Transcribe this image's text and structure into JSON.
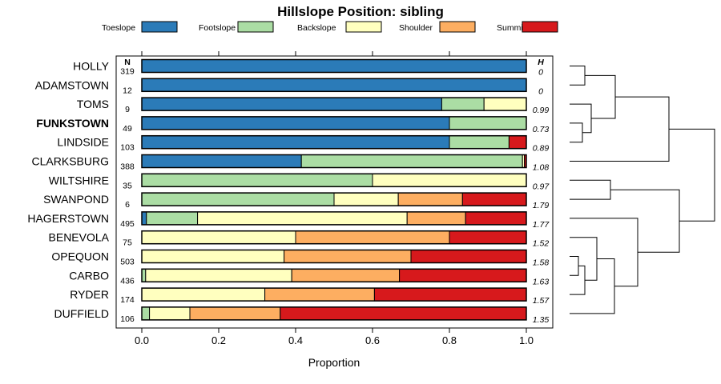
{
  "chart_data": {
    "type": "bar",
    "stacked": true,
    "orientation": "horizontal",
    "title": "Hillslope Position: sibling",
    "xlabel": "Proportion",
    "xlim": [
      0,
      1
    ],
    "xticks": [
      "0.0",
      "0.2",
      "0.4",
      "0.6",
      "0.8",
      "1.0"
    ],
    "n_header": "N",
    "h_header": "H",
    "highlight": "FUNKSTOWN",
    "legend": [
      {
        "name": "Toeslope",
        "color": "#2b7bb8"
      },
      {
        "name": "Footslope",
        "color": "#abdda4"
      },
      {
        "name": "Backslope",
        "color": "#ffffbf"
      },
      {
        "name": "Shoulder",
        "color": "#fdae61"
      },
      {
        "name": "Summit",
        "color": "#d7191c"
      }
    ],
    "rows": [
      {
        "name": "HOLLY",
        "n": "319",
        "h": "0",
        "values": [
          1.0,
          0,
          0,
          0,
          0
        ]
      },
      {
        "name": "ADAMSTOWN",
        "n": "12",
        "h": "0",
        "values": [
          1.0,
          0,
          0,
          0,
          0
        ]
      },
      {
        "name": "TOMS",
        "n": "9",
        "h": "0.99",
        "values": [
          0.78,
          0.11,
          0.11,
          0,
          0
        ]
      },
      {
        "name": "FUNKSTOWN",
        "n": "49",
        "h": "0.73",
        "values": [
          0.8,
          0.2,
          0,
          0,
          0
        ]
      },
      {
        "name": "LINDSIDE",
        "n": "103",
        "h": "0.89",
        "values": [
          0.8,
          0.155,
          0,
          0,
          0.045
        ]
      },
      {
        "name": "CLARKSBURG",
        "n": "388",
        "h": "1.08",
        "values": [
          0.415,
          0.575,
          0.005,
          0,
          0.005
        ]
      },
      {
        "name": "WILTSHIRE",
        "n": "35",
        "h": "0.97",
        "values": [
          0,
          0.6,
          0.4,
          0,
          0
        ]
      },
      {
        "name": "SWANPOND",
        "n": "6",
        "h": "1.79",
        "values": [
          0,
          0.5,
          0.167,
          0.167,
          0.166
        ]
      },
      {
        "name": "HAGERSTOWN",
        "n": "495",
        "h": "1.77",
        "values": [
          0.012,
          0.133,
          0.545,
          0.152,
          0.158
        ]
      },
      {
        "name": "BENEVOLA",
        "n": "75",
        "h": "1.52",
        "values": [
          0,
          0,
          0.4,
          0.4,
          0.2
        ]
      },
      {
        "name": "OPEQUON",
        "n": "503",
        "h": "1.58",
        "values": [
          0,
          0,
          0.37,
          0.33,
          0.3
        ]
      },
      {
        "name": "CARBO",
        "n": "436",
        "h": "1.63",
        "values": [
          0,
          0.01,
          0.38,
          0.28,
          0.33
        ]
      },
      {
        "name": "RYDER",
        "n": "174",
        "h": "1.57",
        "values": [
          0,
          0,
          0.32,
          0.285,
          0.395
        ]
      },
      {
        "name": "DUFFIELD",
        "n": "106",
        "h": "1.35",
        "values": [
          0,
          0.02,
          0.105,
          0.235,
          0.64
        ]
      }
    ],
    "dendrogram": [
      {
        "children": [
          "HOLLY",
          "ADAMSTOWN"
        ]
      },
      {
        "children": [
          "FUNKSTOWN",
          "LINDSIDE"
        ]
      },
      {
        "children": [
          "TOMS",
          1
        ]
      },
      {
        "children": [
          0,
          2
        ]
      },
      {
        "children": [
          3,
          "CLARKSBURG"
        ]
      },
      {
        "children": [
          "WILTSHIRE",
          "SWANPOND"
        ]
      },
      {
        "children": [
          "OPEQUON",
          "CARBO"
        ]
      },
      {
        "children": [
          6,
          "RYDER"
        ]
      },
      {
        "children": [
          "BENEVOLA",
          7
        ]
      },
      {
        "children": [
          8,
          "DUFFIELD"
        ]
      },
      {
        "children": [
          "HAGERSTOWN",
          9
        ]
      },
      {
        "children": [
          5,
          10
        ]
      },
      {
        "children": [
          4,
          11
        ]
      }
    ]
  }
}
